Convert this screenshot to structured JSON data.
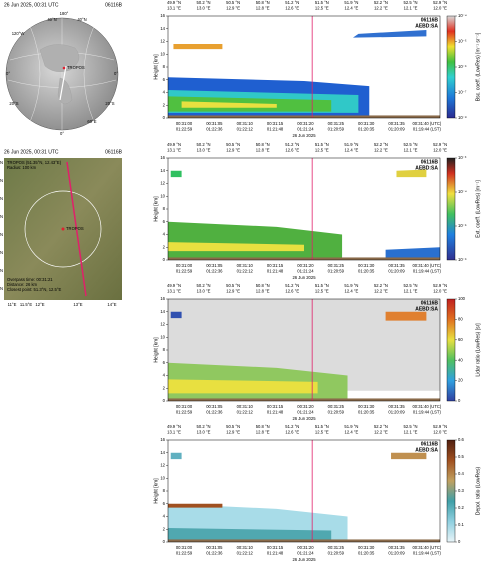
{
  "globe": {
    "date": "26 Jun 2025, 00:31 UTC",
    "orbit": "06116B",
    "station": "TROPOS",
    "labels": [
      "40°N",
      "180°",
      "40°N",
      "120°W",
      "0°",
      "0°",
      "20°S",
      "20°S",
      "60°E",
      "0°"
    ]
  },
  "map": {
    "date": "26 Jun 2025, 00:31 UTC",
    "orbit": "06116B",
    "station": "TROPOS",
    "lat_labels": [
      "52.5°N",
      "52.2°N",
      "51.9°N",
      "51.6°N",
      "51.3°N",
      "51°N",
      "50.7°N",
      "50.4°N"
    ],
    "lon_labels": [
      "11°E",
      "11.5°E",
      "12°E",
      "13°E",
      "14°E"
    ],
    "info_top": [
      "TROPOS (51.35°N, 12.43°E)",
      "Radius: 100 km"
    ],
    "info_bottom": [
      "Overpass time: 00:31:21",
      "Distance: 26 km",
      "Closest point: 51.3°N, 12.5°E"
    ]
  },
  "axes": {
    "top_labels": [
      [
        "49.9 °N",
        "13.1 °E"
      ],
      [
        "50.2 °N",
        "13.0 °E"
      ],
      [
        "50.5 °N",
        "12.9 °E"
      ],
      [
        "50.8 °N",
        "12.8 °E"
      ],
      [
        "51.2 °N",
        "12.6 °E"
      ],
      [
        "51.5 °N",
        "12.5 °E"
      ],
      [
        "51.9 °N",
        "12.4 °E"
      ],
      [
        "52.2 °N",
        "12.2 °E"
      ],
      [
        "52.5 °N",
        "12.1 °E"
      ],
      [
        "52.9 °N",
        "12.0 °E"
      ]
    ],
    "bottom_labels": [
      [
        "00:31:00",
        "01:22:59"
      ],
      [
        "00:31:05",
        "01:22:36"
      ],
      [
        "00:31:10",
        "01:22:12"
      ],
      [
        "00:31:15",
        "01:21:48"
      ],
      [
        "00:31:20",
        "01:21:24"
      ],
      [
        "00:31:25",
        "01:20:59"
      ],
      [
        "00:31:30",
        "01:20:35"
      ],
      [
        "00:31:35",
        "01:20:09"
      ],
      [
        "00:31:40 (UTC)",
        "01:19:44 (LST)"
      ]
    ],
    "date": "26 Jun 2025",
    "ylabel": "Height [km]",
    "yticks": [
      "0",
      "2",
      "4",
      "6",
      "8",
      "10",
      "12",
      "14",
      "16"
    ]
  },
  "panels": [
    {
      "badge": [
        "06116B",
        "AEBD:SA"
      ],
      "colorbar_label": "Bsc. coeff. (LowRes) [m⁻¹ sr⁻¹]",
      "colorbar_ticks": [
        "10⁻⁴",
        "10⁻⁵",
        "10⁻⁶",
        "10⁻⁷",
        "10⁻⁸"
      ]
    },
    {
      "badge": [
        "06116B",
        "AEBD:SA"
      ],
      "colorbar_label": "Ext. coeff. (LowRes) [m⁻¹]",
      "colorbar_ticks": [
        "10⁻³",
        "10⁻⁴",
        "10⁻⁵",
        "10⁻⁶"
      ]
    },
    {
      "badge": [
        "06116B",
        "AEBD:SA"
      ],
      "colorbar_label": "Lidar ratio (LowRes) [sr]",
      "colorbar_ticks": [
        "100",
        "80",
        "60",
        "40",
        "20",
        "0"
      ]
    },
    {
      "badge": [
        "06116B",
        "AEBD:SA"
      ],
      "colorbar_label": "Depol. ratio (LowRes)",
      "colorbar_ticks": [
        "0.6",
        "0.5",
        "0.4",
        "0.3",
        "0.2",
        "0.1",
        "0"
      ]
    }
  ]
}
